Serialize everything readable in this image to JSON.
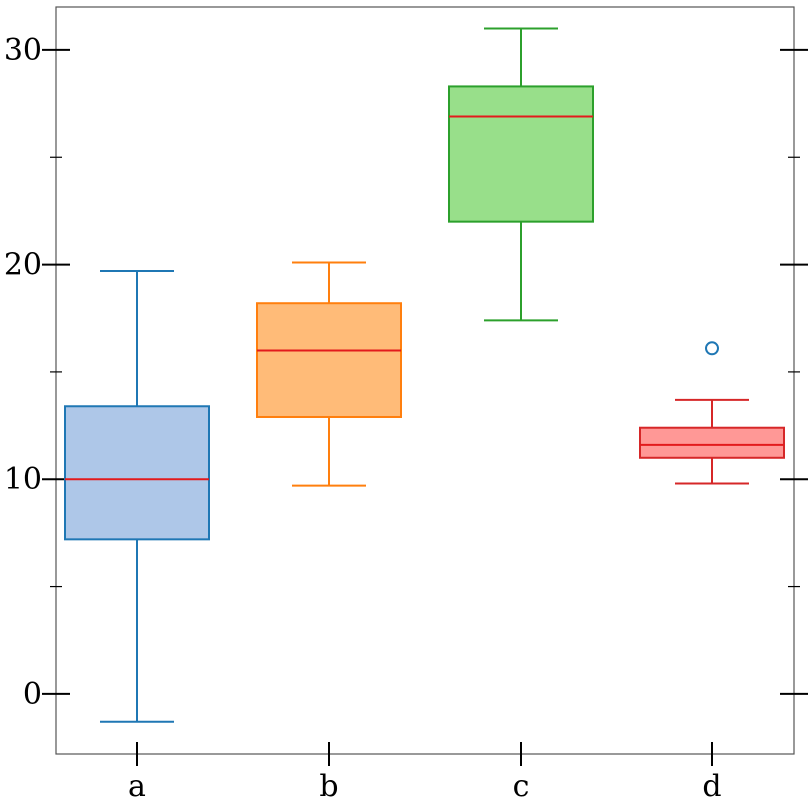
{
  "chart_data": {
    "type": "box",
    "title": "",
    "xlabel": "",
    "ylabel": "",
    "categories": [
      "a",
      "b",
      "c",
      "d"
    ],
    "ylim": [
      -2.8,
      32
    ],
    "yticks": [
      0,
      10,
      20,
      30
    ],
    "yticks_minor": [
      5,
      15,
      25
    ],
    "grid": false,
    "median_color": "#e31a1c",
    "boxes": [
      {
        "category": "a",
        "whisker_low": -1.3,
        "q1": 7.2,
        "median": 10.0,
        "q3": 13.4,
        "whisker_high": 19.7,
        "outliers": [],
        "fill": "#aec7e8",
        "edge": "#1f77b4"
      },
      {
        "category": "b",
        "whisker_low": 9.7,
        "q1": 12.9,
        "median": 16.0,
        "q3": 18.2,
        "whisker_high": 20.1,
        "outliers": [],
        "fill": "#ffbb78",
        "edge": "#ff7f0e"
      },
      {
        "category": "c",
        "whisker_low": 17.4,
        "q1": 22.0,
        "median": 26.9,
        "q3": 28.3,
        "whisker_high": 31.0,
        "outliers": [],
        "fill": "#98df8a",
        "edge": "#2ca02c"
      },
      {
        "category": "d",
        "whisker_low": 9.8,
        "q1": 11.0,
        "median": 11.6,
        "q3": 12.4,
        "whisker_high": 13.7,
        "outliers": [
          16.1
        ],
        "fill": "#ff9896",
        "edge": "#d62728"
      }
    ]
  }
}
